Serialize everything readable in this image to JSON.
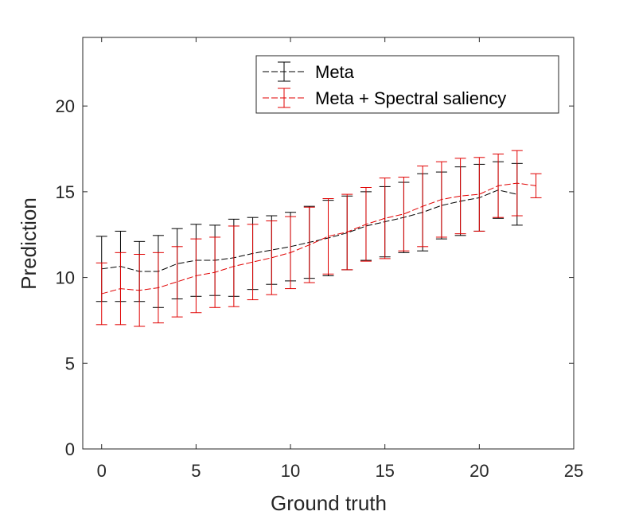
{
  "chart_data": {
    "type": "line",
    "xlabel": "Ground truth",
    "ylabel": "Prediction",
    "xlim": [
      -1,
      25
    ],
    "ylim": [
      0,
      24
    ],
    "xticks": [
      0,
      5,
      10,
      15,
      20,
      25
    ],
    "yticks": [
      0,
      5,
      10,
      15,
      20
    ],
    "grid": false,
    "legend_position": "top-right",
    "series": [
      {
        "name": "Meta",
        "color": "#000000",
        "line_style": "dashed",
        "x": [
          0,
          1,
          2,
          3,
          4,
          5,
          6,
          7,
          8,
          9,
          10,
          11,
          12,
          13,
          14,
          15,
          16,
          17,
          18,
          19,
          20,
          21,
          22
        ],
        "y": [
          10.5,
          10.65,
          10.35,
          10.35,
          10.8,
          11.0,
          11.0,
          11.15,
          11.4,
          11.6,
          11.8,
          12.05,
          12.3,
          12.6,
          13.0,
          13.25,
          13.5,
          13.8,
          14.2,
          14.45,
          14.65,
          15.1,
          14.85
        ],
        "err": [
          1.9,
          2.05,
          1.75,
          2.1,
          2.05,
          2.1,
          2.05,
          2.25,
          2.1,
          2.0,
          2.0,
          2.1,
          2.2,
          2.15,
          2.0,
          2.05,
          2.05,
          2.25,
          1.95,
          2.0,
          1.95,
          1.65,
          1.8
        ]
      },
      {
        "name": "Meta + Spectral saliency",
        "color": "#e00000",
        "line_style": "dashed",
        "x": [
          0,
          1,
          2,
          3,
          4,
          5,
          6,
          7,
          8,
          9,
          10,
          11,
          12,
          13,
          14,
          15,
          16,
          17,
          18,
          19,
          20,
          21,
          22,
          23
        ],
        "y": [
          9.05,
          9.35,
          9.25,
          9.4,
          9.75,
          10.1,
          10.3,
          10.65,
          10.9,
          11.15,
          11.45,
          11.9,
          12.4,
          12.65,
          13.1,
          13.45,
          13.7,
          14.15,
          14.55,
          14.75,
          14.85,
          15.35,
          15.5,
          15.35
        ],
        "err": [
          1.8,
          2.1,
          2.1,
          2.05,
          2.05,
          2.15,
          2.05,
          2.35,
          2.2,
          2.15,
          2.1,
          2.2,
          2.2,
          2.2,
          2.15,
          2.35,
          2.15,
          2.35,
          2.2,
          2.2,
          2.15,
          1.85,
          1.9,
          0.7
        ]
      }
    ]
  }
}
